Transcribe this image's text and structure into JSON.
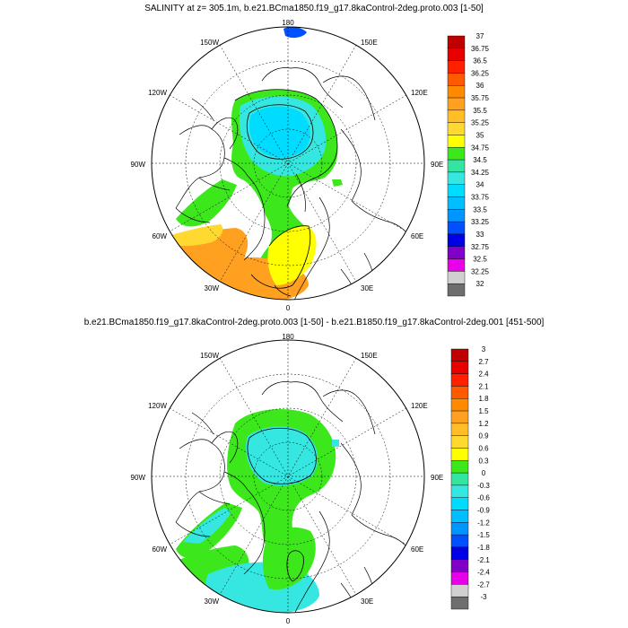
{
  "panels": [
    {
      "id": "top",
      "title": "SALINITY at z= 305.1m, b.e21.BCma1850.f19_g17.8kaControl-2deg.proto.003 [1-50]",
      "lon_labels": {
        "n": "180",
        "s": "0",
        "e": "90E",
        "w": "90W",
        "ne": "150E",
        "nw": "150W",
        "ene": "120E",
        "wnw": "120W",
        "ese": "60E",
        "wsw": "60W",
        "se": "30E",
        "sw": "30W"
      },
      "colorbar": {
        "labels": [
          "37",
          "36.75",
          "36.5",
          "36.25",
          "36",
          "35.75",
          "35.5",
          "35.25",
          "35",
          "34.75",
          "34.5",
          "34.25",
          "34",
          "33.75",
          "33.5",
          "33.25",
          "33",
          "32.75",
          "32.5",
          "32.25",
          "32"
        ],
        "colors": [
          "#c00000",
          "#e80000",
          "#ff2000",
          "#ff5a00",
          "#ff8a00",
          "#ffa020",
          "#ffbe28",
          "#ffd830",
          "#ffff00",
          "#3ce81c",
          "#32e6a0",
          "#36e6e0",
          "#00dcff",
          "#00beff",
          "#0096ff",
          "#0050ff",
          "#0000e6",
          "#8000c8",
          "#e800e8",
          "#d0d0d0",
          "#6e6e6e"
        ]
      }
    },
    {
      "id": "bottom",
      "title": "b.e21.BCma1850.f19_g17.8kaControl-2deg.proto.003 [1-50] - b.e21.B1850.f19_g17.8kaControl-2deg.001 [451-500]",
      "lon_labels": {
        "n": "180",
        "s": "0",
        "e": "90E",
        "w": "90W",
        "ne": "150E",
        "nw": "150W",
        "ene": "120E",
        "wnw": "120W",
        "ese": "60E",
        "wsw": "60W",
        "se": "30E",
        "sw": "30W"
      },
      "colorbar": {
        "labels": [
          "3",
          "2.7",
          "2.4",
          "2.1",
          "1.8",
          "1.5",
          "1.2",
          "0.9",
          "0.6",
          "0.3",
          "0",
          "-0.3",
          "-0.6",
          "-0.9",
          "-1.2",
          "-1.5",
          "-1.8",
          "-2.1",
          "-2.4",
          "-2.7",
          "-3"
        ],
        "colors": [
          "#c00000",
          "#e80000",
          "#ff2000",
          "#ff5a00",
          "#ff8a00",
          "#ffa020",
          "#ffbe28",
          "#ffd830",
          "#ffff00",
          "#3ce81c",
          "#32e6a0",
          "#36e6e0",
          "#00dcff",
          "#00beff",
          "#0096ff",
          "#0050ff",
          "#0000e6",
          "#8000c8",
          "#e800e8",
          "#d0d0d0",
          "#6e6e6e"
        ]
      }
    }
  ]
}
